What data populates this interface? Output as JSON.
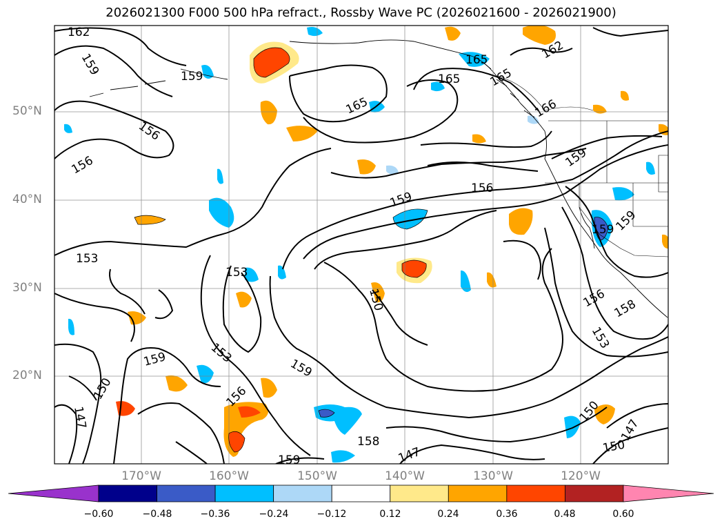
{
  "title": "2026021300 F000 500 hPa refract., Rossby Wave PC (2026021600 - 2026021900)",
  "latitude_labels": [
    "50°N",
    "40°N",
    "30°N",
    "20°N"
  ],
  "longitude_labels": [
    "170°W",
    "160°W",
    "150°W",
    "140°W",
    "130°W",
    "120°W"
  ],
  "contour_labels": [
    "162",
    "159",
    "159",
    "165",
    "165",
    "165",
    "166",
    "162",
    "165",
    "156",
    "156",
    "159",
    "156",
    "159",
    "159",
    "159",
    "153",
    "153",
    "150",
    "153",
    "159",
    "159",
    "150",
    "147",
    "156",
    "158",
    "159",
    "147",
    "156",
    "158",
    "153",
    "150",
    "150",
    "147"
  ],
  "colorbar": {
    "ticks": [
      "−0.60",
      "−0.48",
      "−0.36",
      "−0.24",
      "−0.12",
      "0.12",
      "0.24",
      "0.36",
      "0.48",
      "0.60"
    ],
    "colors": [
      "#9932cc",
      "#00008b",
      "#3a5bc7",
      "#00bfff",
      "#add8f7",
      "#ffffff",
      "#ffe98a",
      "#ffa500",
      "#ff4500",
      "#b22222",
      "#ff85b0"
    ]
  }
}
